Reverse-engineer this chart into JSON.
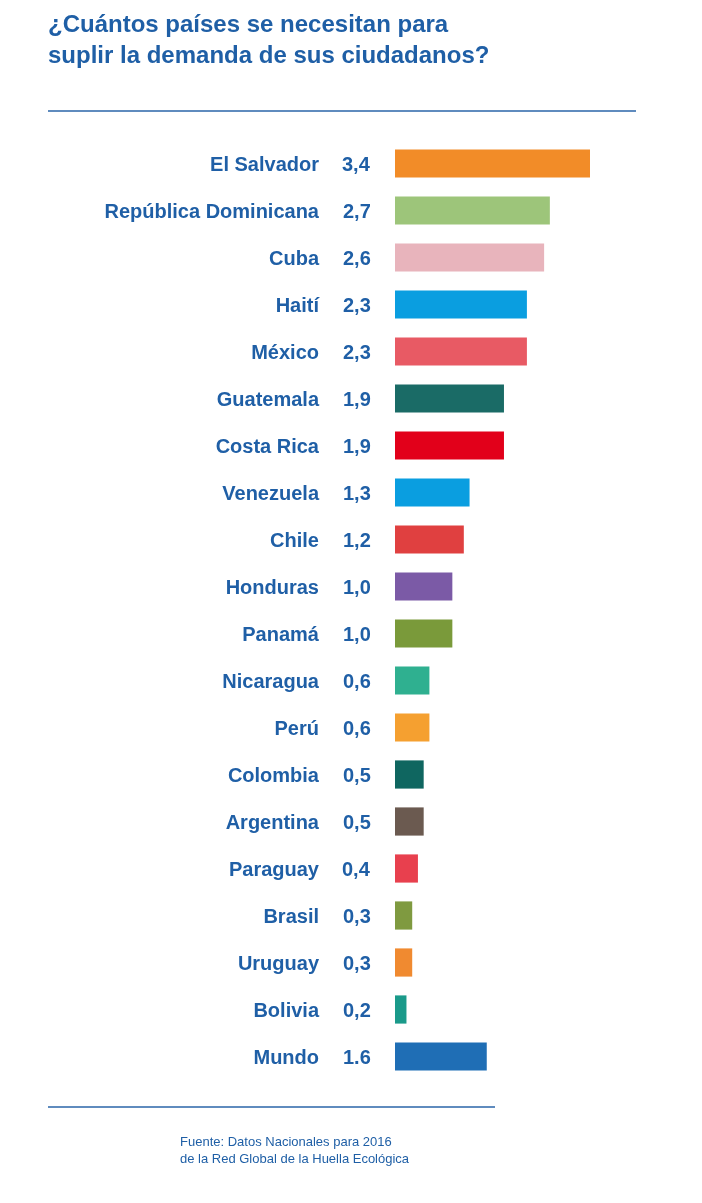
{
  "chart_data": {
    "type": "bar",
    "orientation": "horizontal",
    "title": "¿Cuántos países se necesitan para\nsuplir la demanda de sus ciudadanos?",
    "categories": [
      "El Salvador",
      "República Dominicana",
      "Cuba",
      "Haití",
      "México",
      "Guatemala",
      "Costa Rica",
      "Venezuela",
      "Chile",
      "Honduras",
      "Panamá",
      "Nicaragua",
      "Perú",
      "Colombia",
      "Argentina",
      "Paraguay",
      "Brasil",
      "Uruguay",
      "Bolivia",
      "Mundo"
    ],
    "values": [
      3.4,
      2.7,
      2.6,
      2.3,
      2.3,
      1.9,
      1.9,
      1.3,
      1.2,
      1.0,
      1.0,
      0.6,
      0.6,
      0.5,
      0.5,
      0.4,
      0.3,
      0.3,
      0.2,
      1.6
    ],
    "colors": [
      "#f28c28",
      "#9dc57a",
      "#e8b4bc",
      "#0a9ee0",
      "#e85a64",
      "#1a6b66",
      "#e2001a",
      "#0a9ee0",
      "#e04040",
      "#7b5aa6",
      "#7a9a3a",
      "#2fb090",
      "#f5a030",
      "#0f6660",
      "#6b5a50",
      "#e8404e",
      "#7f9a40",
      "#f08a30",
      "#1a9a8a",
      "#1f6eb5"
    ],
    "value_labels": [
      "3,4",
      "2,7",
      "2,6",
      "2,3",
      "2,3",
      "1,9",
      "1,9",
      "1,3",
      "1,2",
      "1,0",
      "1,0",
      "0,6",
      "0,6",
      "0,5",
      "0,5",
      "0,4",
      "0,3",
      "0,3",
      "0,2",
      "1.6"
    ],
    "tick_labels": "y",
    "annotations": [
      "Fuente: Datos Nacionales para 2016\nde la Red Global de la Huella Ecológica"
    ]
  }
}
